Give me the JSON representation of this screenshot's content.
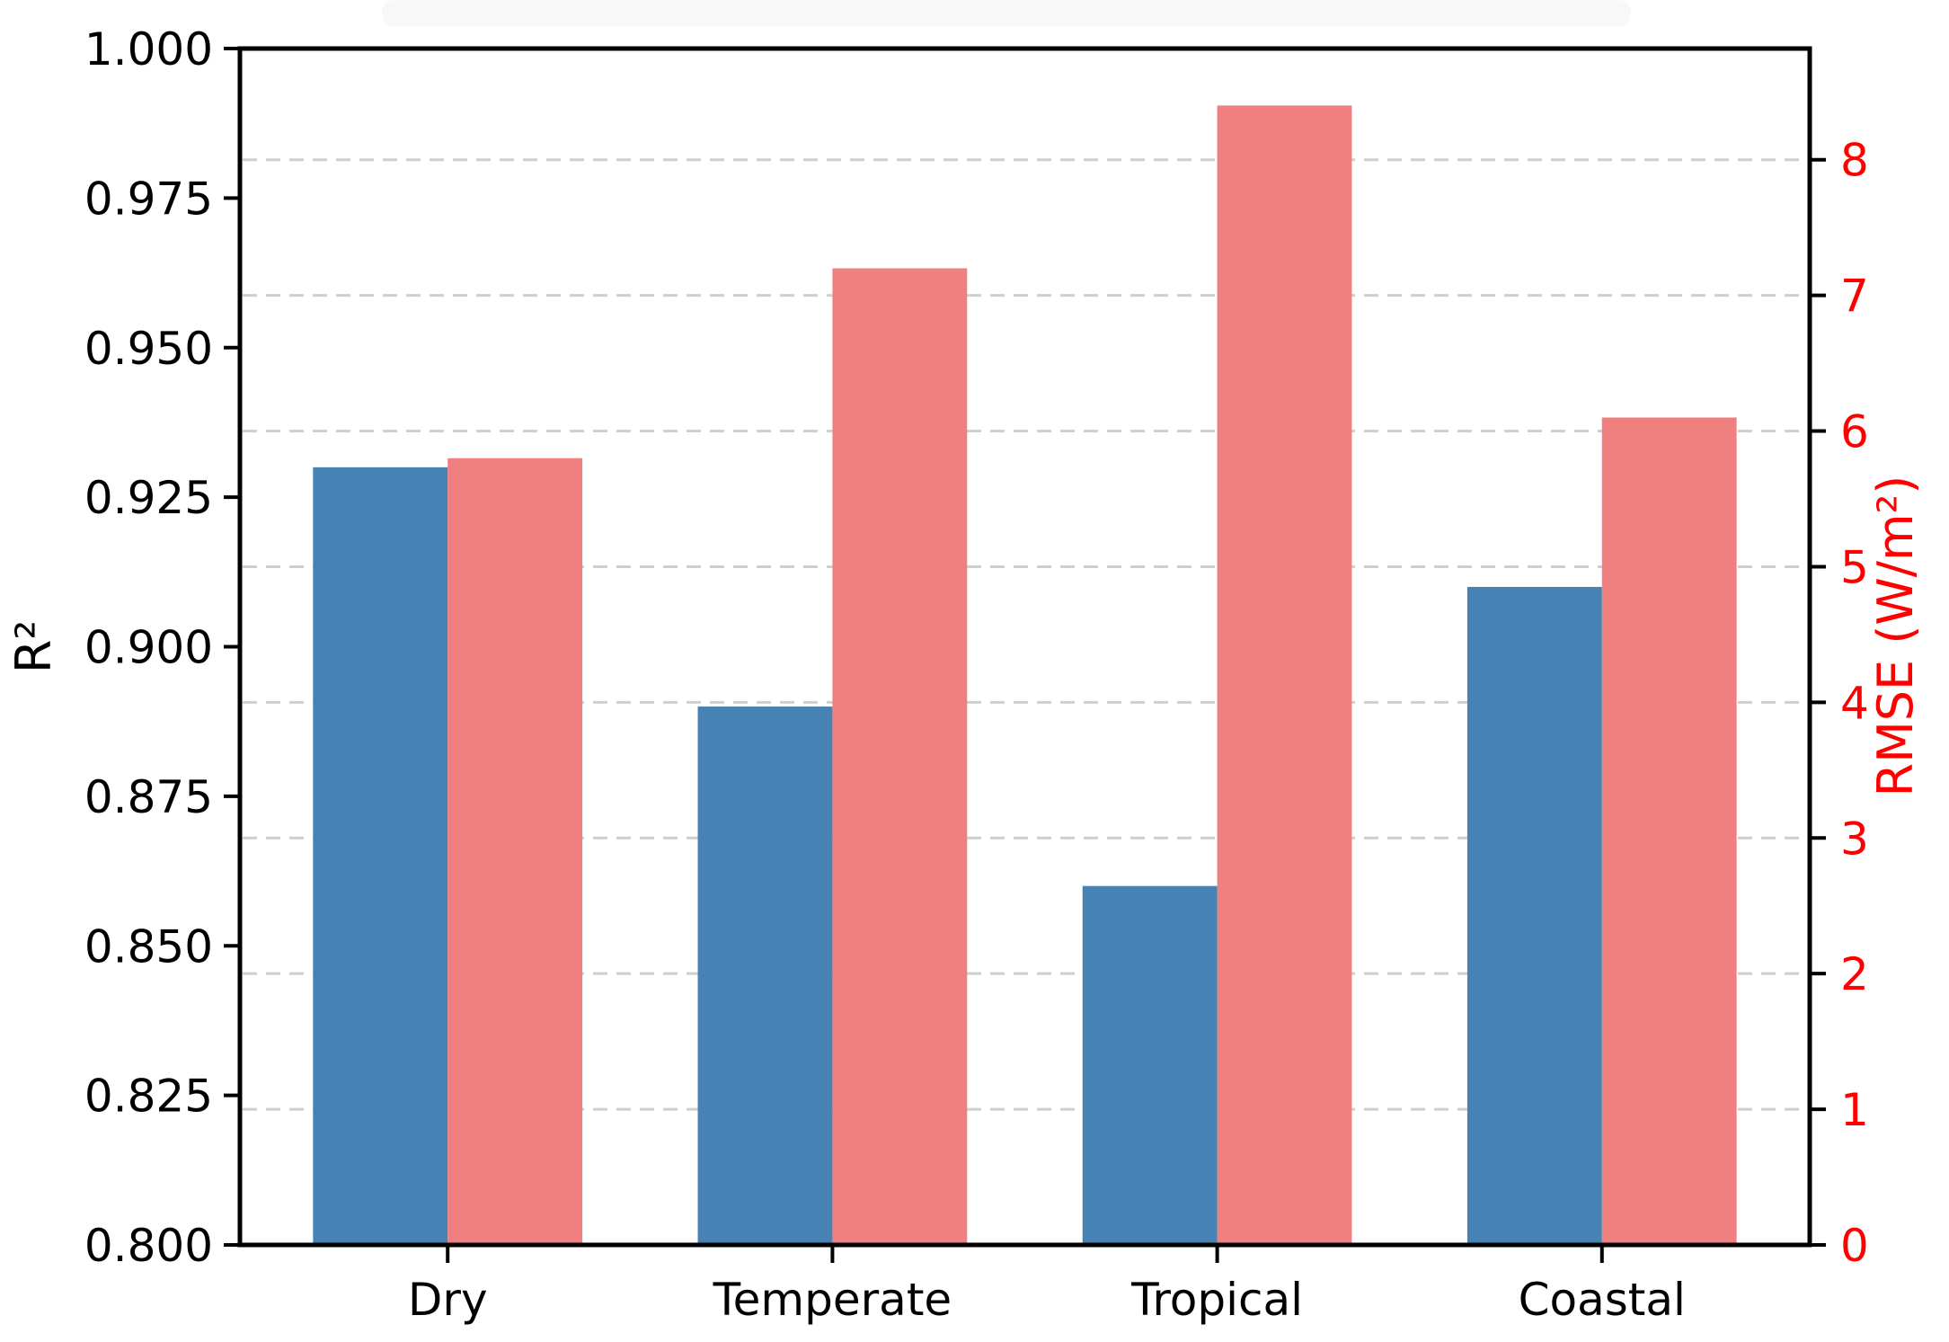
{
  "figure": {
    "title": "",
    "background": "#ffffff"
  },
  "chart_data": {
    "type": "bar",
    "dual_axis": true,
    "categories": [
      "Dry",
      "Temperate",
      "Tropical",
      "Coastal"
    ],
    "series": [
      {
        "name": "R²",
        "axis": "left",
        "color": "#4682B4",
        "values": [
          0.93,
          0.89,
          0.86,
          0.91
        ]
      },
      {
        "name": "RMSE",
        "axis": "right",
        "color": "#F08080",
        "values": [
          5.8,
          7.2,
          8.4,
          6.1
        ]
      }
    ],
    "left_axis": {
      "label": "R²",
      "min": 0.8,
      "max": 1.0,
      "tick_step": 0.025,
      "ticks": [
        "0.800",
        "0.825",
        "0.850",
        "0.875",
        "0.900",
        "0.925",
        "0.950",
        "0.975",
        "1.000"
      ],
      "tick_color": "#000000",
      "label_color": "#000000"
    },
    "right_axis": {
      "label": "RMSE (W/m²)",
      "min": 0,
      "max": 8.82,
      "tick_step": 1,
      "ticks": [
        "0",
        "1",
        "2",
        "3",
        "4",
        "5",
        "6",
        "7",
        "8"
      ],
      "tick_color": "#ff0000",
      "label_color": "#ff0000"
    },
    "grid": {
      "show": true,
      "follows": "right_axis",
      "style": "dashed",
      "color": "#cfcfcf"
    },
    "legend": {
      "show": false
    },
    "spine_color": "#000000"
  }
}
